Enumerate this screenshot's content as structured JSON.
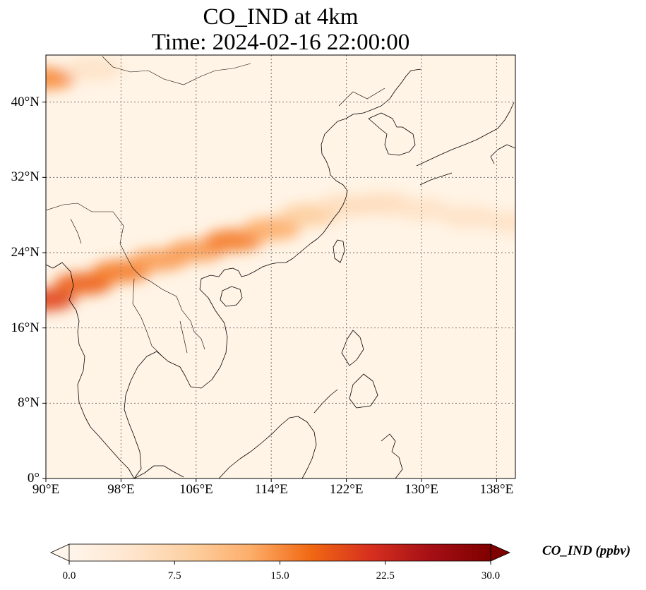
{
  "title": {
    "line1": "CO_IND at 4km",
    "line2": "Time: 2024-02-16 22:00:00"
  },
  "map": {
    "lon_range": [
      90,
      140
    ],
    "lat_range": [
      0,
      45
    ],
    "grid_style": "dotted",
    "lat_ticks": [
      {
        "value": 0,
        "label": "0°"
      },
      {
        "value": 8,
        "label": "8°N"
      },
      {
        "value": 16,
        "label": "16°N"
      },
      {
        "value": 24,
        "label": "24°N"
      },
      {
        "value": 32,
        "label": "32°N"
      },
      {
        "value": 40,
        "label": "40°N"
      }
    ],
    "lon_ticks": [
      {
        "value": 90,
        "label": "90°E"
      },
      {
        "value": 98,
        "label": "98°E"
      },
      {
        "value": 106,
        "label": "106°E"
      },
      {
        "value": 114,
        "label": "114°E"
      },
      {
        "value": 122,
        "label": "122°E"
      },
      {
        "value": 130,
        "label": "130°E"
      },
      {
        "value": 138,
        "label": "138°E"
      }
    ],
    "plumes": [
      {
        "lon": 90.0,
        "lat": 19.0,
        "value": 20
      },
      {
        "lon": 94.0,
        "lat": 20.7,
        "value": 18
      },
      {
        "lon": 98.0,
        "lat": 22.0,
        "value": 16
      },
      {
        "lon": 102.0,
        "lat": 23.2,
        "value": 14
      },
      {
        "lon": 106.0,
        "lat": 24.2,
        "value": 14
      },
      {
        "lon": 110.0,
        "lat": 25.3,
        "value": 16
      },
      {
        "lon": 114.0,
        "lat": 26.5,
        "value": 13
      },
      {
        "lon": 118.0,
        "lat": 28.0,
        "value": 9
      },
      {
        "lon": 122.0,
        "lat": 29.0,
        "value": 6
      },
      {
        "lon": 126.0,
        "lat": 29.2,
        "value": 6
      },
      {
        "lon": 130.0,
        "lat": 28.6,
        "value": 5
      },
      {
        "lon": 135.0,
        "lat": 27.8,
        "value": 5
      },
      {
        "lon": 140.0,
        "lat": 27.2,
        "value": 5
      },
      {
        "lon": 90.0,
        "lat": 42.5,
        "value": 15
      },
      {
        "lon": 95.0,
        "lat": 43.5,
        "value": 5
      }
    ]
  },
  "colorbar": {
    "label": "CO_IND (ppbv)",
    "min": 0.0,
    "max": 30.0,
    "ticks": [
      "0.0",
      "7.5",
      "15.0",
      "22.5",
      "30.0"
    ],
    "colors": [
      "#fff5eb",
      "#fee6ce",
      "#fdd0a2",
      "#fdae6b",
      "#f16913",
      "#d7301f",
      "#a50f15",
      "#7f0000"
    ]
  }
}
